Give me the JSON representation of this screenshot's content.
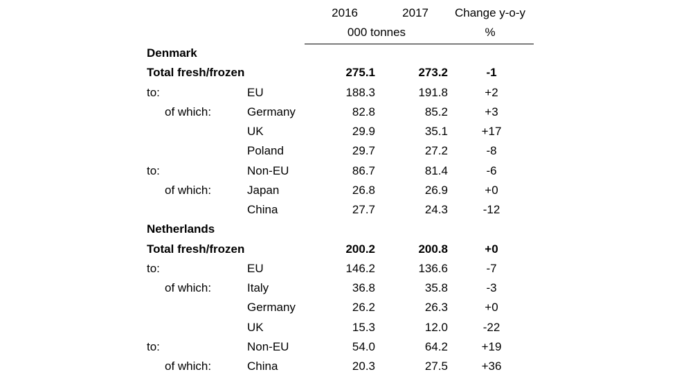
{
  "header": {
    "year1": "2016",
    "year2": "2017",
    "change": "Change y-o-y",
    "unit": "000 tonnes",
    "change_unit": "%"
  },
  "rows": [
    {
      "type": "country",
      "label": "Denmark"
    },
    {
      "type": "total",
      "a": "Total fresh/frozen",
      "c": "",
      "v1": "275.1",
      "v2": "273.2",
      "chg": "-1"
    },
    {
      "type": "data",
      "a": "to:",
      "c": "EU",
      "v1": "188.3",
      "v2": "191.8",
      "chg": "+2"
    },
    {
      "type": "data",
      "a": "of which:",
      "c": "Germany",
      "v1": "82.8",
      "v2": "85.2",
      "chg": "+3"
    },
    {
      "type": "data",
      "a": "",
      "c": "UK",
      "v1": "29.9",
      "v2": "35.1",
      "chg": "+17"
    },
    {
      "type": "data",
      "a": "",
      "c": "Poland",
      "v1": "29.7",
      "v2": "27.2",
      "chg": "-8"
    },
    {
      "type": "data",
      "a": "to:",
      "c": "Non-EU",
      "v1": "86.7",
      "v2": "81.4",
      "chg": "-6"
    },
    {
      "type": "data",
      "a": "of which:",
      "c": "Japan",
      "v1": "26.8",
      "v2": "26.9",
      "chg": "+0"
    },
    {
      "type": "data",
      "a": "",
      "c": "China",
      "v1": "27.7",
      "v2": "24.3",
      "chg": "-12"
    },
    {
      "type": "country",
      "label": "Netherlands"
    },
    {
      "type": "total",
      "a": "Total fresh/frozen",
      "c": "",
      "v1": "200.2",
      "v2": "200.8",
      "chg": "+0"
    },
    {
      "type": "data",
      "a": "to:",
      "c": "EU",
      "v1": "146.2",
      "v2": "136.6",
      "chg": "-7"
    },
    {
      "type": "data",
      "a": "of which:",
      "c": "Italy",
      "v1": "36.8",
      "v2": "35.8",
      "chg": "-3"
    },
    {
      "type": "data",
      "a": "",
      "c": "Germany",
      "v1": "26.2",
      "v2": "26.3",
      "chg": "+0"
    },
    {
      "type": "data",
      "a": "",
      "c": "UK",
      "v1": "15.3",
      "v2": "12.0",
      "chg": "-22"
    },
    {
      "type": "data",
      "a": "to:",
      "c": "Non-EU",
      "v1": "54.0",
      "v2": "64.2",
      "chg": "+19"
    },
    {
      "type": "data",
      "a": "of which:",
      "c": "China",
      "v1": "20.3",
      "v2": "27.5",
      "chg": "+36"
    }
  ]
}
